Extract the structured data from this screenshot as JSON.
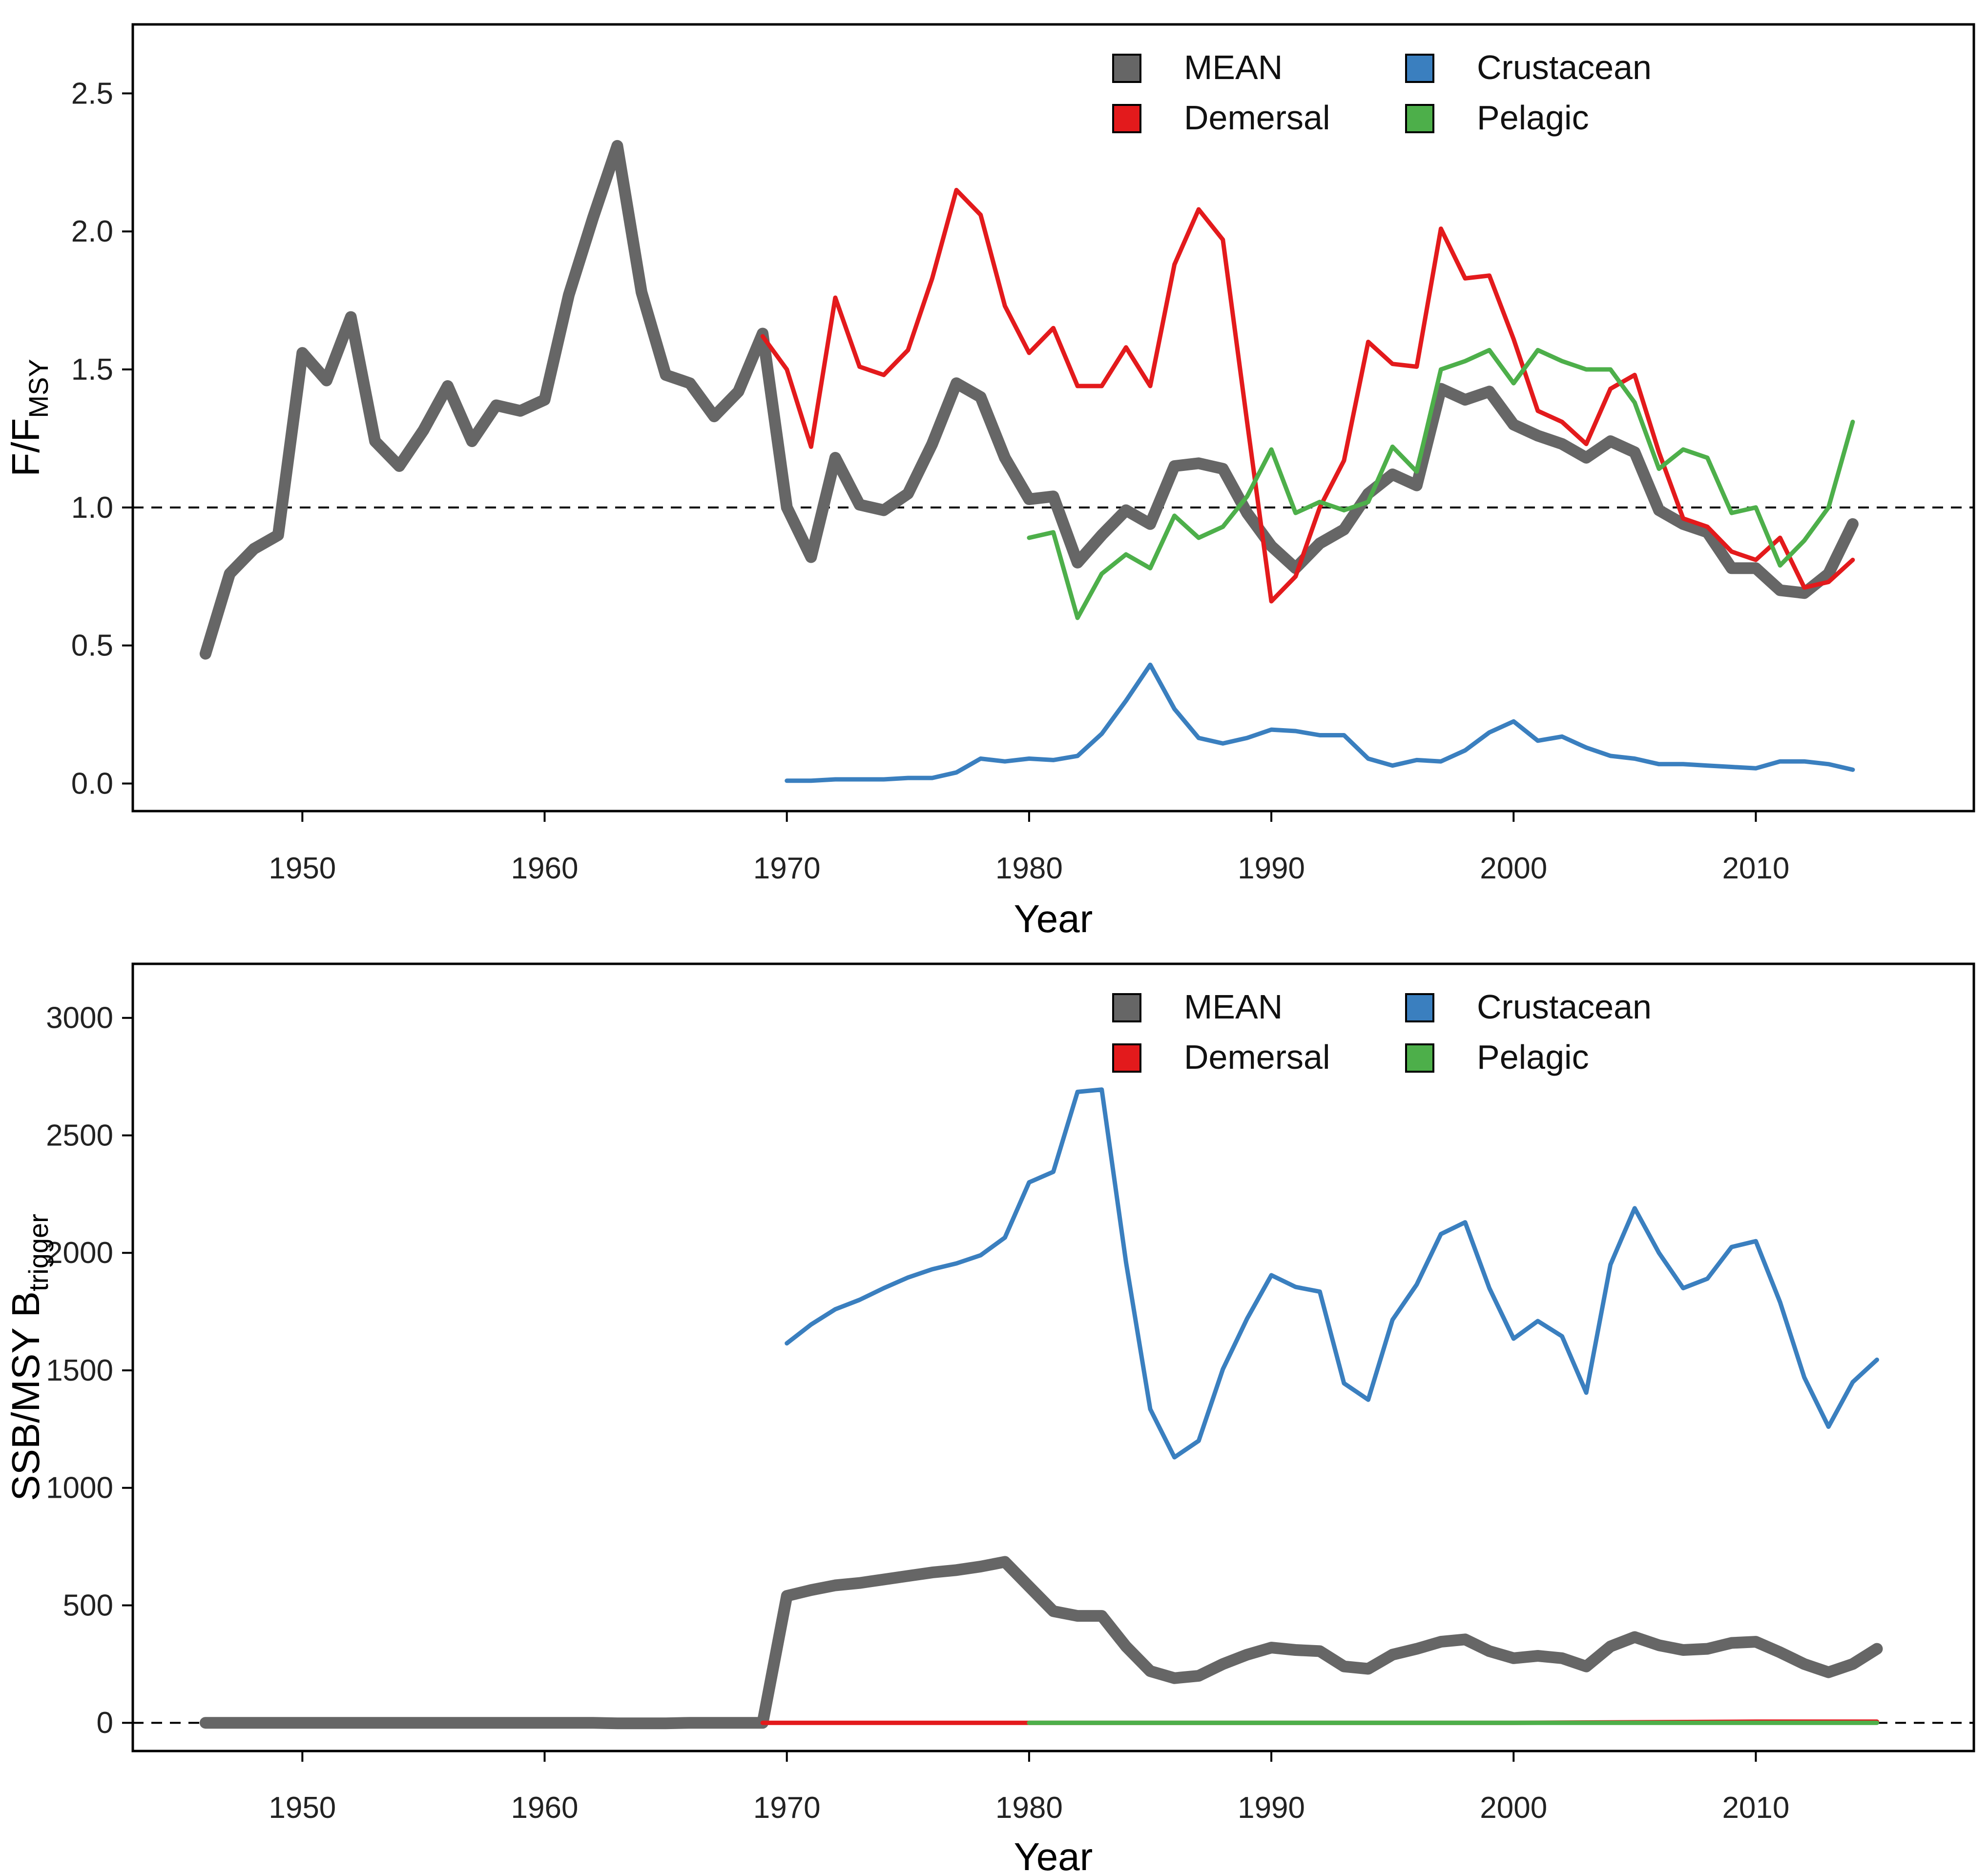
{
  "chart_data": [
    {
      "type": "line",
      "xlabel": "Year",
      "ylabel_main": "F/F",
      "ylabel_sub": "MSY",
      "xlim": [
        1943,
        2019
      ],
      "ylim": [
        -0.1,
        2.75
      ],
      "xticks": [
        1950,
        1960,
        1970,
        1980,
        1990,
        2000,
        2010
      ],
      "yticks": [
        0.0,
        0.5,
        1.0,
        1.5,
        2.0,
        2.5
      ],
      "ytick_labels": [
        "0.0",
        "0.5",
        "1.0",
        "1.5",
        "2.0",
        "2.5"
      ],
      "reference_line": 1.0,
      "legend_position": "top-right",
      "series": [
        {
          "name": "MEAN",
          "color": "#666666",
          "width": "thick",
          "x": [
            1946,
            1947,
            1948,
            1949,
            1950,
            1951,
            1952,
            1953,
            1954,
            1955,
            1956,
            1957,
            1958,
            1959,
            1960,
            1961,
            1962,
            1963,
            1964,
            1965,
            1966,
            1967,
            1968,
            1969,
            1970,
            1971,
            1972,
            1973,
            1974,
            1975,
            1976,
            1977,
            1978,
            1979,
            1980,
            1981,
            1982,
            1983,
            1984,
            1985,
            1986,
            1987,
            1988,
            1989,
            1990,
            1991,
            1992,
            1993,
            1994,
            1995,
            1996,
            1997,
            1998,
            1999,
            2000,
            2001,
            2002,
            2003,
            2004,
            2005,
            2006,
            2007,
            2008,
            2009,
            2010,
            2011,
            2012,
            2013,
            2014
          ],
          "values": [
            0.47,
            0.76,
            0.85,
            0.9,
            1.56,
            1.46,
            1.69,
            1.24,
            1.15,
            1.28,
            1.44,
            1.24,
            1.37,
            1.35,
            1.39,
            1.77,
            2.05,
            2.31,
            1.78,
            1.48,
            1.45,
            1.33,
            1.42,
            1.63,
            1.0,
            0.82,
            1.18,
            1.01,
            0.99,
            1.05,
            1.23,
            1.45,
            1.4,
            1.18,
            1.03,
            1.04,
            0.8,
            0.9,
            0.99,
            0.94,
            1.15,
            1.16,
            1.14,
            0.98,
            0.86,
            0.78,
            0.87,
            0.92,
            1.05,
            1.12,
            1.08,
            1.43,
            1.39,
            1.42,
            1.3,
            1.26,
            1.23,
            1.18,
            1.24,
            1.2,
            0.99,
            0.94,
            0.91,
            0.78,
            0.78,
            0.7,
            0.69,
            0.76,
            0.94
          ]
        },
        {
          "name": "Crustacean",
          "color": "#3a7fbf",
          "width": "thin",
          "x": [
            1970,
            1971,
            1972,
            1973,
            1974,
            1975,
            1976,
            1977,
            1978,
            1979,
            1980,
            1981,
            1982,
            1983,
            1984,
            1985,
            1986,
            1987,
            1988,
            1989,
            1990,
            1991,
            1992,
            1993,
            1994,
            1995,
            1996,
            1997,
            1998,
            1999,
            2000,
            2001,
            2002,
            2003,
            2004,
            2005,
            2006,
            2007,
            2008,
            2009,
            2010,
            2011,
            2012,
            2013,
            2014
          ],
          "values": [
            0.01,
            0.01,
            0.015,
            0.015,
            0.015,
            0.02,
            0.02,
            0.04,
            0.09,
            0.08,
            0.09,
            0.085,
            0.1,
            0.18,
            0.3,
            0.43,
            0.27,
            0.165,
            0.145,
            0.165,
            0.195,
            0.19,
            0.175,
            0.175,
            0.09,
            0.065,
            0.085,
            0.08,
            0.12,
            0.185,
            0.225,
            0.155,
            0.17,
            0.13,
            0.1,
            0.09,
            0.07,
            0.07,
            0.065,
            0.06,
            0.055,
            0.08,
            0.08,
            0.07,
            0.05
          ]
        },
        {
          "name": "Demersal",
          "color": "#e31a1c",
          "width": "thin",
          "x": [
            1969,
            1970,
            1971,
            1972,
            1973,
            1974,
            1975,
            1976,
            1977,
            1978,
            1979,
            1980,
            1981,
            1982,
            1983,
            1984,
            1985,
            1986,
            1987,
            1988,
            1989,
            1990,
            1991,
            1992,
            1993,
            1994,
            1995,
            1996,
            1997,
            1998,
            1999,
            2000,
            2001,
            2002,
            2003,
            2004,
            2005,
            2006,
            2007,
            2008,
            2009,
            2010,
            2011,
            2012,
            2013,
            2014
          ],
          "values": [
            1.62,
            1.5,
            1.22,
            1.76,
            1.51,
            1.48,
            1.57,
            1.83,
            2.15,
            2.06,
            1.73,
            1.56,
            1.65,
            1.44,
            1.44,
            1.58,
            1.44,
            1.88,
            2.08,
            1.97,
            1.31,
            0.66,
            0.75,
            1.0,
            1.17,
            1.6,
            1.52,
            1.51,
            2.01,
            1.83,
            1.84,
            1.61,
            1.35,
            1.31,
            1.23,
            1.43,
            1.48,
            1.2,
            0.96,
            0.93,
            0.84,
            0.81,
            0.89,
            0.71,
            0.73,
            0.81
          ]
        },
        {
          "name": "Pelagic",
          "color": "#4daf4a",
          "width": "thin",
          "x": [
            1980,
            1981,
            1982,
            1983,
            1984,
            1985,
            1986,
            1987,
            1988,
            1989,
            1990,
            1991,
            1992,
            1993,
            1994,
            1995,
            1996,
            1997,
            1998,
            1999,
            2000,
            2001,
            2002,
            2003,
            2004,
            2005,
            2006,
            2007,
            2008,
            2009,
            2010,
            2011,
            2012,
            2013,
            2014
          ],
          "values": [
            0.89,
            0.91,
            0.6,
            0.76,
            0.83,
            0.78,
            0.97,
            0.89,
            0.93,
            1.04,
            1.21,
            0.98,
            1.02,
            0.99,
            1.02,
            1.22,
            1.13,
            1.5,
            1.53,
            1.57,
            1.45,
            1.57,
            1.53,
            1.5,
            1.5,
            1.38,
            1.14,
            1.21,
            1.18,
            0.98,
            1.0,
            0.79,
            0.88,
            1.0,
            1.31
          ]
        }
      ]
    },
    {
      "type": "line",
      "xlabel": "Year",
      "ylabel_main": "SSB/MSY B",
      "ylabel_sub": "trigger",
      "xlim": [
        1943,
        2019
      ],
      "ylim": [
        -120,
        3230
      ],
      "xticks": [
        1950,
        1960,
        1970,
        1980,
        1990,
        2000,
        2010
      ],
      "yticks": [
        0,
        500,
        1000,
        1500,
        2000,
        2500,
        3000
      ],
      "ytick_labels": [
        "0",
        "500",
        "1000",
        "1500",
        "2000",
        "2500",
        "3000"
      ],
      "reference_line": 0,
      "legend_position": "top-right",
      "series": [
        {
          "name": "MEAN",
          "color": "#666666",
          "width": "thick",
          "x": [
            1946,
            1947,
            1948,
            1949,
            1950,
            1951,
            1952,
            1953,
            1954,
            1955,
            1956,
            1957,
            1958,
            1959,
            1960,
            1961,
            1962,
            1963,
            1964,
            1965,
            1966,
            1967,
            1968,
            1969,
            1970,
            1971,
            1972,
            1973,
            1974,
            1975,
            1976,
            1977,
            1978,
            1979,
            1980,
            1981,
            1982,
            1983,
            1984,
            1985,
            1986,
            1987,
            1988,
            1989,
            1990,
            1991,
            1992,
            1993,
            1994,
            1995,
            1996,
            1997,
            1998,
            1999,
            2000,
            2001,
            2002,
            2003,
            2004,
            2005,
            2006,
            2007,
            2008,
            2009,
            2010,
            2011,
            2012,
            2013,
            2014,
            2015
          ],
          "values": [
            0,
            0,
            0,
            0,
            0,
            0,
            0,
            0,
            0,
            0,
            0,
            0,
            0,
            0,
            0,
            0,
            0,
            -2,
            -2,
            -2,
            0,
            0,
            0,
            0,
            540,
            565,
            585,
            595,
            610,
            625,
            640,
            650,
            665,
            685,
            580,
            475,
            455,
            455,
            325,
            220,
            190,
            200,
            250,
            290,
            320,
            310,
            305,
            240,
            230,
            290,
            315,
            345,
            355,
            305,
            275,
            285,
            275,
            240,
            325,
            365,
            330,
            310,
            315,
            340,
            345,
            300,
            250,
            215,
            250,
            315
          ]
        },
        {
          "name": "Crustacean",
          "color": "#3a7fbf",
          "width": "thin",
          "x": [
            1970,
            1971,
            1972,
            1973,
            1974,
            1975,
            1976,
            1977,
            1978,
            1979,
            1980,
            1981,
            1982,
            1983,
            1984,
            1985,
            1986,
            1987,
            1988,
            1989,
            1990,
            1991,
            1992,
            1993,
            1994,
            1995,
            1996,
            1997,
            1998,
            1999,
            2000,
            2001,
            2002,
            2003,
            2004,
            2005,
            2006,
            2007,
            2008,
            2009,
            2010,
            2011,
            2012,
            2013,
            2014,
            2015
          ],
          "values": [
            1615,
            1695,
            1760,
            1800,
            1850,
            1895,
            1930,
            1955,
            1990,
            2065,
            2300,
            2345,
            2685,
            2695,
            1960,
            1335,
            1130,
            1200,
            1505,
            1720,
            1905,
            1855,
            1835,
            1445,
            1375,
            1715,
            1865,
            2080,
            2130,
            1850,
            1635,
            1710,
            1645,
            1405,
            1950,
            2190,
            2000,
            1850,
            1890,
            2025,
            2050,
            1790,
            1470,
            1260,
            1450,
            1545
          ]
        },
        {
          "name": "Demersal",
          "color": "#e31a1c",
          "width": "thin",
          "x": [
            1969,
            1980,
            1990,
            2000,
            2010,
            2015
          ],
          "values": [
            0,
            0,
            0,
            0,
            5,
            5
          ]
        },
        {
          "name": "Pelagic",
          "color": "#4daf4a",
          "width": "thin",
          "x": [
            1980,
            1990,
            2000,
            2010,
            2015
          ],
          "values": [
            0,
            0,
            0,
            0,
            0
          ]
        }
      ]
    }
  ],
  "legend": {
    "entries": [
      {
        "label": "MEAN",
        "color": "#666666"
      },
      {
        "label": "Crustacean",
        "color": "#3a7fbf"
      },
      {
        "label": "Demersal",
        "color": "#e31a1c"
      },
      {
        "label": "Pelagic",
        "color": "#4daf4a"
      }
    ]
  }
}
